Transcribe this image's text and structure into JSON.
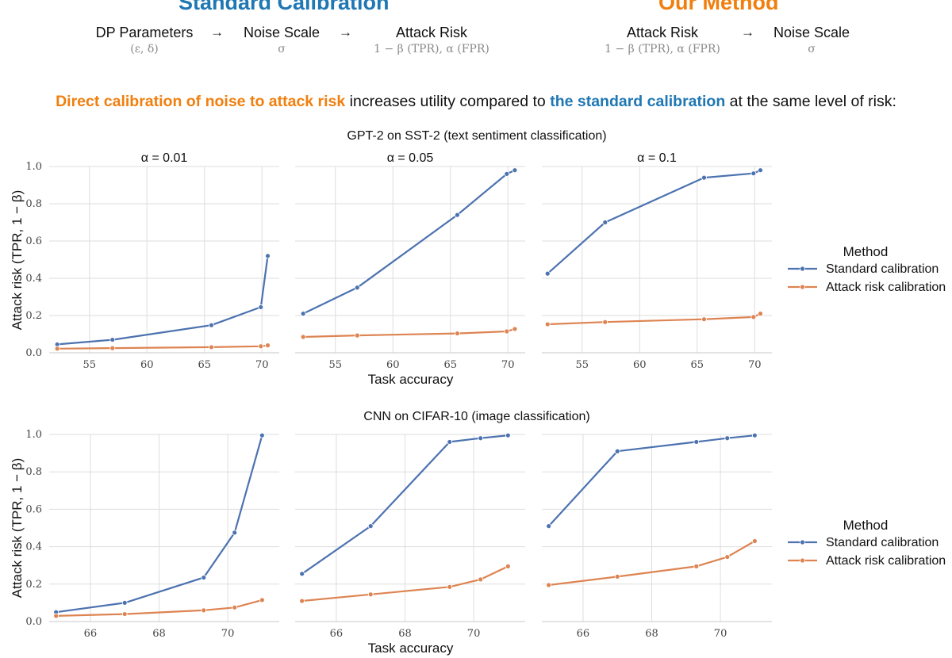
{
  "header": {
    "standard_title": "Standard Calibration",
    "ours_title": "Our Method",
    "flow_left": {
      "step1": "DP Parameters",
      "step1_sub": "(ε, δ)",
      "arrow1": "→",
      "step2": "Noise Scale",
      "step2_sub": "σ",
      "arrow2": "→",
      "step3": "Attack Risk",
      "step3_sub": "1 − β (TPR), α (FPR)"
    },
    "flow_right": {
      "step1": "Attack Risk",
      "step1_sub": "1 − β (TPR), α (FPR)",
      "arrow1": "→",
      "step2": "Noise Scale",
      "step2_sub": "σ"
    }
  },
  "tagline": {
    "part1": "Direct calibration of noise to attack risk",
    "part2": " increases utility compared to ",
    "part3": "the standard calibration",
    "part4": " at the same level of risk:"
  },
  "colors": {
    "standard": "#4c72b0",
    "attack": "#dd8452",
    "orange_text": "#f07f0e",
    "blue_text": "#1f77b4"
  },
  "chart_data": [
    {
      "type": "line",
      "title": "GPT-2 on SST-2 (text sentiment classification)",
      "xlabel": "Task accuracy",
      "ylabel": "Attack risk (TPR, 1 − β)",
      "xlim": [
        51.5,
        71.5
      ],
      "ylim": [
        0,
        1.0
      ],
      "xticks": [
        55,
        60,
        65,
        70
      ],
      "yticks": [
        0.0,
        0.2,
        0.4,
        0.6,
        0.8,
        1.0
      ],
      "grid": true,
      "legend": {
        "title": "Method",
        "placement": "right",
        "entries": [
          "Standard calibration",
          "Attack risk calibration"
        ]
      },
      "panels": [
        {
          "title": "α = 0.01",
          "series": [
            {
              "name": "Standard calibration",
              "x": [
                52.2,
                57.0,
                65.6,
                69.9,
                70.5
              ],
              "y": [
                0.045,
                0.07,
                0.148,
                0.245,
                0.52
              ]
            },
            {
              "name": "Attack risk calibration",
              "x": [
                52.2,
                57.0,
                65.6,
                69.9,
                70.5
              ],
              "y": [
                0.022,
                0.025,
                0.03,
                0.035,
                0.04
              ]
            }
          ]
        },
        {
          "title": "α = 0.05",
          "series": [
            {
              "name": "Standard calibration",
              "x": [
                52.2,
                56.9,
                65.6,
                69.9,
                70.6
              ],
              "y": [
                0.21,
                0.35,
                0.74,
                0.96,
                0.98
              ]
            },
            {
              "name": "Attack risk calibration",
              "x": [
                52.2,
                56.9,
                65.6,
                69.9,
                70.6
              ],
              "y": [
                0.085,
                0.093,
                0.104,
                0.115,
                0.128
              ]
            }
          ]
        },
        {
          "title": "α = 0.1",
          "series": [
            {
              "name": "Standard calibration",
              "x": [
                52.0,
                57.0,
                65.6,
                69.9,
                70.5
              ],
              "y": [
                0.425,
                0.7,
                0.94,
                0.963,
                0.98
              ]
            },
            {
              "name": "Attack risk calibration",
              "x": [
                52.0,
                57.0,
                65.6,
                69.9,
                70.5
              ],
              "y": [
                0.153,
                0.165,
                0.18,
                0.192,
                0.21
              ]
            }
          ]
        }
      ]
    },
    {
      "type": "line",
      "title": "CNN on CIFAR-10 (image classification)",
      "xlabel": "Task accuracy",
      "ylabel": "Attack risk (TPR, 1 − β)",
      "xlim": [
        64.8,
        71.5
      ],
      "ylim": [
        0,
        1.0
      ],
      "xticks": [
        66,
        68,
        70
      ],
      "yticks": [
        0.0,
        0.2,
        0.4,
        0.6,
        0.8,
        1.0
      ],
      "grid": true,
      "legend": {
        "title": "Method",
        "placement": "right",
        "entries": [
          "Standard calibration",
          "Attack risk calibration"
        ]
      },
      "panels": [
        {
          "title": "",
          "series": [
            {
              "name": "Standard calibration",
              "x": [
                65.0,
                67.0,
                69.3,
                70.2,
                71.0
              ],
              "y": [
                0.05,
                0.1,
                0.235,
                0.475,
                0.995
              ]
            },
            {
              "name": "Attack risk calibration",
              "x": [
                65.0,
                67.0,
                69.3,
                70.2,
                71.0
              ],
              "y": [
                0.03,
                0.04,
                0.06,
                0.075,
                0.115
              ]
            }
          ]
        },
        {
          "title": "",
          "series": [
            {
              "name": "Standard calibration",
              "x": [
                65.0,
                67.0,
                69.3,
                70.2,
                71.0
              ],
              "y": [
                0.255,
                0.51,
                0.96,
                0.98,
                0.995
              ]
            },
            {
              "name": "Attack risk calibration",
              "x": [
                65.0,
                67.0,
                69.3,
                70.2,
                71.0
              ],
              "y": [
                0.11,
                0.145,
                0.185,
                0.225,
                0.295
              ]
            }
          ]
        },
        {
          "title": "",
          "series": [
            {
              "name": "Standard calibration",
              "x": [
                65.0,
                67.0,
                69.3,
                70.2,
                71.0
              ],
              "y": [
                0.51,
                0.91,
                0.96,
                0.98,
                0.995
              ]
            },
            {
              "name": "Attack risk calibration",
              "x": [
                65.0,
                67.0,
                69.3,
                70.2,
                71.0
              ],
              "y": [
                0.195,
                0.24,
                0.295,
                0.345,
                0.43
              ]
            }
          ]
        }
      ]
    }
  ]
}
